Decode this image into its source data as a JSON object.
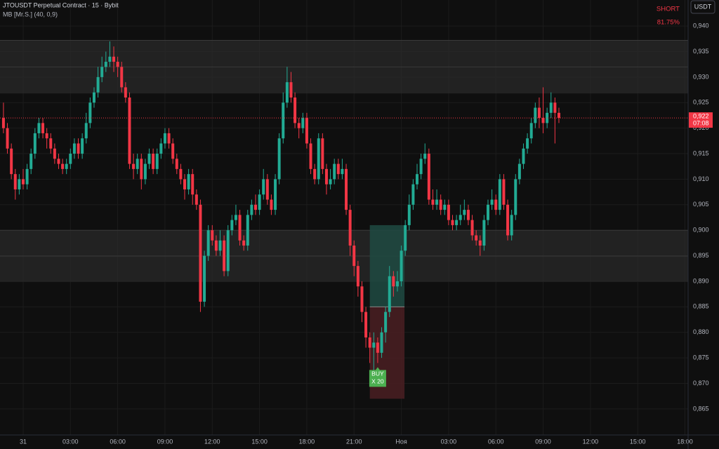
{
  "chart_data": {
    "type": "candlestick",
    "title": "JTOUSDT Perpetual Contract · 15 · Bybit",
    "subtitle": "MB [Mr.S.] (40, 0,9)",
    "signal": {
      "side": "SHORT",
      "value": "81.75%",
      "color": "#f23645"
    },
    "currency": "USDT",
    "buy_label": [
      "BUY",
      "X 20"
    ],
    "up_color": "#22ab94",
    "down_color": "#f23645",
    "grid": true,
    "xlim": [
      -1.47,
      42.2
    ],
    "ylim": [
      0.8599,
      0.9451
    ],
    "xticks": [
      {
        "value": 0,
        "label": "31"
      },
      {
        "value": 3,
        "label": "03:00"
      },
      {
        "value": 6,
        "label": "06:00"
      },
      {
        "value": 9,
        "label": "09:00"
      },
      {
        "value": 12,
        "label": "12:00"
      },
      {
        "value": 15,
        "label": "15:00"
      },
      {
        "value": 18,
        "label": "18:00"
      },
      {
        "value": 21,
        "label": "21:00"
      },
      {
        "value": 24,
        "label": "Ноя"
      },
      {
        "value": 27,
        "label": "03:00"
      },
      {
        "value": 30,
        "label": "06:00"
      },
      {
        "value": 33,
        "label": "09:00"
      },
      {
        "value": 36,
        "label": "12:00"
      },
      {
        "value": 39,
        "label": "15:00"
      },
      {
        "value": 42,
        "label": "18:00"
      }
    ],
    "yticks": [
      {
        "value": 0.94,
        "label": "0,940"
      },
      {
        "value": 0.935,
        "label": "0,935"
      },
      {
        "value": 0.93,
        "label": "0,930"
      },
      {
        "value": 0.925,
        "label": "0,925"
      },
      {
        "value": 0.92,
        "label": "0,920"
      },
      {
        "value": 0.915,
        "label": "0,915"
      },
      {
        "value": 0.91,
        "label": "0,910"
      },
      {
        "value": 0.905,
        "label": "0,905"
      },
      {
        "value": 0.9,
        "label": "0,900"
      },
      {
        "value": 0.895,
        "label": "0,895"
      },
      {
        "value": 0.89,
        "label": "0,890"
      },
      {
        "value": 0.885,
        "label": "0,885"
      },
      {
        "value": 0.88,
        "label": "0,880"
      },
      {
        "value": 0.875,
        "label": "0,875"
      },
      {
        "value": 0.87,
        "label": "0,870"
      },
      {
        "value": 0.865,
        "label": "0,865"
      }
    ],
    "last_price": {
      "value": 0.922,
      "label": "0,922",
      "countdown": "07:08"
    },
    "zones": [
      {
        "top": 0.9372,
        "bottom": 0.9268
      },
      {
        "top": 0.9,
        "bottom": 0.8899
      }
    ],
    "position": {
      "x_start": 22,
      "x_end": 24.2,
      "target": 0.901,
      "entry": 0.885,
      "stop": 0.867
    },
    "x": [
      -1.25,
      -1,
      -0.75,
      -0.5,
      -0.25,
      0,
      0.25,
      0.5,
      0.75,
      1,
      1.25,
      1.5,
      1.75,
      2,
      2.25,
      2.5,
      2.75,
      3,
      3.25,
      3.5,
      3.75,
      4,
      4.25,
      4.5,
      4.75,
      5,
      5.25,
      5.5,
      5.75,
      6,
      6.25,
      6.5,
      6.75,
      7,
      7.25,
      7.5,
      7.75,
      8,
      8.25,
      8.5,
      8.75,
      9,
      9.25,
      9.5,
      9.75,
      10,
      10.25,
      10.5,
      10.75,
      11,
      11.25,
      11.5,
      11.75,
      12,
      12.25,
      12.5,
      12.75,
      13,
      13.25,
      13.5,
      13.75,
      14,
      14.25,
      14.5,
      14.75,
      15,
      15.25,
      15.5,
      15.75,
      16,
      16.25,
      16.5,
      16.75,
      17,
      17.25,
      17.5,
      17.75,
      18,
      18.25,
      18.5,
      18.75,
      19,
      19.25,
      19.5,
      19.75,
      20,
      20.25,
      20.5,
      20.75,
      21,
      21.25,
      21.5,
      21.75,
      22,
      22.25,
      22.5,
      22.75,
      23,
      23.25,
      23.5,
      23.75,
      24,
      24.25,
      24.5,
      24.75,
      25,
      25.25,
      25.5,
      25.75,
      26,
      26.25,
      26.5,
      26.75,
      27,
      27.25,
      27.5,
      27.75,
      28,
      28.25,
      28.5,
      28.75,
      29,
      29.25,
      29.5,
      29.75,
      30,
      30.25,
      30.5,
      30.75,
      31,
      31.25,
      31.5,
      31.75,
      32,
      32.25,
      32.5,
      32.75,
      33,
      33.25,
      33.5,
      33.75,
      34
    ],
    "ohlc": [
      [
        0.922,
        0.925,
        0.919,
        0.92
      ],
      [
        0.92,
        0.921,
        0.915,
        0.916
      ],
      [
        0.916,
        0.917,
        0.91,
        0.911
      ],
      [
        0.911,
        0.912,
        0.906,
        0.908
      ],
      [
        0.908,
        0.911,
        0.907,
        0.91
      ],
      [
        0.91,
        0.912,
        0.908,
        0.909
      ],
      [
        0.909,
        0.913,
        0.908,
        0.912
      ],
      [
        0.912,
        0.916,
        0.911,
        0.915
      ],
      [
        0.915,
        0.92,
        0.914,
        0.919
      ],
      [
        0.919,
        0.922,
        0.918,
        0.921
      ],
      [
        0.921,
        0.922,
        0.918,
        0.919
      ],
      [
        0.919,
        0.92,
        0.916,
        0.918
      ],
      [
        0.918,
        0.919,
        0.915,
        0.916
      ],
      [
        0.916,
        0.917,
        0.913,
        0.914
      ],
      [
        0.914,
        0.915,
        0.912,
        0.913
      ],
      [
        0.913,
        0.914,
        0.911,
        0.912
      ],
      [
        0.912,
        0.914,
        0.911,
        0.913
      ],
      [
        0.913,
        0.916,
        0.912,
        0.915
      ],
      [
        0.915,
        0.918,
        0.914,
        0.917
      ],
      [
        0.917,
        0.918,
        0.914,
        0.915
      ],
      [
        0.915,
        0.919,
        0.914,
        0.918
      ],
      [
        0.918,
        0.923,
        0.917,
        0.921
      ],
      [
        0.921,
        0.926,
        0.92,
        0.925
      ],
      [
        0.925,
        0.928,
        0.924,
        0.927
      ],
      [
        0.927,
        0.932,
        0.926,
        0.93
      ],
      [
        0.93,
        0.934,
        0.929,
        0.932
      ],
      [
        0.932,
        0.935,
        0.931,
        0.933
      ],
      [
        0.933,
        0.937,
        0.932,
        0.934
      ],
      [
        0.934,
        0.936,
        0.931,
        0.933
      ],
      [
        0.933,
        0.934,
        0.93,
        0.932
      ],
      [
        0.932,
        0.933,
        0.927,
        0.928
      ],
      [
        0.928,
        0.929,
        0.925,
        0.926
      ],
      [
        0.926,
        0.927,
        0.912,
        0.913
      ],
      [
        0.913,
        0.915,
        0.91,
        0.912
      ],
      [
        0.912,
        0.915,
        0.911,
        0.914
      ],
      [
        0.914,
        0.915,
        0.908,
        0.91
      ],
      [
        0.91,
        0.914,
        0.909,
        0.913
      ],
      [
        0.913,
        0.916,
        0.912,
        0.915
      ],
      [
        0.915,
        0.916,
        0.911,
        0.912
      ],
      [
        0.912,
        0.916,
        0.911,
        0.915
      ],
      [
        0.915,
        0.918,
        0.914,
        0.917
      ],
      [
        0.917,
        0.92,
        0.916,
        0.919
      ],
      [
        0.919,
        0.92,
        0.916,
        0.917
      ],
      [
        0.917,
        0.918,
        0.913,
        0.914
      ],
      [
        0.914,
        0.915,
        0.911,
        0.912
      ],
      [
        0.912,
        0.913,
        0.909,
        0.91
      ],
      [
        0.91,
        0.911,
        0.906,
        0.908
      ],
      [
        0.908,
        0.912,
        0.907,
        0.911
      ],
      [
        0.911,
        0.912,
        0.905,
        0.907
      ],
      [
        0.907,
        0.908,
        0.904,
        0.905
      ],
      [
        0.905,
        0.906,
        0.884,
        0.886
      ],
      [
        0.886,
        0.896,
        0.885,
        0.895
      ],
      [
        0.895,
        0.901,
        0.894,
        0.9
      ],
      [
        0.9,
        0.901,
        0.897,
        0.898
      ],
      [
        0.898,
        0.899,
        0.895,
        0.896
      ],
      [
        0.896,
        0.9,
        0.895,
        0.898
      ],
      [
        0.898,
        0.899,
        0.891,
        0.892
      ],
      [
        0.892,
        0.901,
        0.891,
        0.9
      ],
      [
        0.9,
        0.903,
        0.899,
        0.902
      ],
      [
        0.902,
        0.905,
        0.901,
        0.903
      ],
      [
        0.903,
        0.904,
        0.897,
        0.898
      ],
      [
        0.898,
        0.899,
        0.896,
        0.897
      ],
      [
        0.897,
        0.904,
        0.896,
        0.903
      ],
      [
        0.903,
        0.906,
        0.902,
        0.905
      ],
      [
        0.905,
        0.907,
        0.903,
        0.904
      ],
      [
        0.904,
        0.908,
        0.903,
        0.907
      ],
      [
        0.907,
        0.912,
        0.906,
        0.91
      ],
      [
        0.91,
        0.911,
        0.905,
        0.906
      ],
      [
        0.906,
        0.907,
        0.903,
        0.904
      ],
      [
        0.904,
        0.911,
        0.903,
        0.91
      ],
      [
        0.91,
        0.919,
        0.909,
        0.918
      ],
      [
        0.918,
        0.927,
        0.917,
        0.925
      ],
      [
        0.925,
        0.932,
        0.924,
        0.929
      ],
      [
        0.929,
        0.931,
        0.925,
        0.926
      ],
      [
        0.926,
        0.927,
        0.92,
        0.921
      ],
      [
        0.921,
        0.922,
        0.918,
        0.92
      ],
      [
        0.92,
        0.923,
        0.919,
        0.922
      ],
      [
        0.922,
        0.923,
        0.916,
        0.917
      ],
      [
        0.917,
        0.918,
        0.911,
        0.912
      ],
      [
        0.912,
        0.913,
        0.909,
        0.91
      ],
      [
        0.91,
        0.919,
        0.909,
        0.918
      ],
      [
        0.918,
        0.919,
        0.911,
        0.912
      ],
      [
        0.912,
        0.913,
        0.907,
        0.909
      ],
      [
        0.909,
        0.912,
        0.908,
        0.91
      ],
      [
        0.91,
        0.914,
        0.909,
        0.913
      ],
      [
        0.913,
        0.914,
        0.91,
        0.911
      ],
      [
        0.911,
        0.914,
        0.91,
        0.912
      ],
      [
        0.912,
        0.913,
        0.903,
        0.904
      ],
      [
        0.904,
        0.905,
        0.895,
        0.897
      ],
      [
        0.897,
        0.898,
        0.891,
        0.893
      ],
      [
        0.893,
        0.894,
        0.887,
        0.889
      ],
      [
        0.889,
        0.89,
        0.882,
        0.884
      ],
      [
        0.884,
        0.885,
        0.877,
        0.879
      ],
      [
        0.879,
        0.88,
        0.874,
        0.877
      ],
      [
        0.877,
        0.88,
        0.8715,
        0.878
      ],
      [
        0.878,
        0.879,
        0.874,
        0.876
      ],
      [
        0.876,
        0.881,
        0.875,
        0.88
      ],
      [
        0.88,
        0.885,
        0.878,
        0.884
      ],
      [
        0.884,
        0.893,
        0.883,
        0.891
      ],
      [
        0.891,
        0.892,
        0.887,
        0.889
      ],
      [
        0.889,
        0.892,
        0.888,
        0.89
      ],
      [
        0.89,
        0.897,
        0.889,
        0.896
      ],
      [
        0.896,
        0.902,
        0.895,
        0.901
      ],
      [
        0.901,
        0.907,
        0.9,
        0.905
      ],
      [
        0.905,
        0.91,
        0.904,
        0.909
      ],
      [
        0.909,
        0.913,
        0.908,
        0.911
      ],
      [
        0.911,
        0.915,
        0.91,
        0.914
      ],
      [
        0.914,
        0.917,
        0.913,
        0.915
      ],
      [
        0.915,
        0.916,
        0.905,
        0.906
      ],
      [
        0.906,
        0.908,
        0.904,
        0.905
      ],
      [
        0.905,
        0.908,
        0.904,
        0.906
      ],
      [
        0.906,
        0.907,
        0.903,
        0.904
      ],
      [
        0.904,
        0.906,
        0.903,
        0.905
      ],
      [
        0.905,
        0.906,
        0.901,
        0.902
      ],
      [
        0.902,
        0.903,
        0.9,
        0.901
      ],
      [
        0.901,
        0.903,
        0.9,
        0.902
      ],
      [
        0.902,
        0.905,
        0.901,
        0.903
      ],
      [
        0.903,
        0.906,
        0.902,
        0.904
      ],
      [
        0.904,
        0.905,
        0.901,
        0.902
      ],
      [
        0.902,
        0.903,
        0.898,
        0.899
      ],
      [
        0.899,
        0.9,
        0.897,
        0.898
      ],
      [
        0.898,
        0.899,
        0.895,
        0.897
      ],
      [
        0.897,
        0.903,
        0.896,
        0.902
      ],
      [
        0.902,
        0.906,
        0.901,
        0.905
      ],
      [
        0.905,
        0.908,
        0.904,
        0.906
      ],
      [
        0.906,
        0.907,
        0.903,
        0.904
      ],
      [
        0.904,
        0.911,
        0.903,
        0.91
      ],
      [
        0.91,
        0.911,
        0.904,
        0.905
      ],
      [
        0.905,
        0.906,
        0.898,
        0.899
      ],
      [
        0.899,
        0.904,
        0.898,
        0.903
      ],
      [
        0.903,
        0.911,
        0.902,
        0.91
      ],
      [
        0.91,
        0.914,
        0.909,
        0.913
      ],
      [
        0.913,
        0.917,
        0.912,
        0.916
      ],
      [
        0.916,
        0.919,
        0.915,
        0.918
      ],
      [
        0.918,
        0.922,
        0.917,
        0.921
      ],
      [
        0.921,
        0.925,
        0.92,
        0.924
      ],
      [
        0.924,
        0.926,
        0.92,
        0.922
      ],
      [
        0.922,
        0.928,
        0.919,
        0.921
      ],
      [
        0.921,
        0.924,
        0.92,
        0.923
      ],
      [
        0.923,
        0.927,
        0.922,
        0.925
      ],
      [
        0.925,
        0.926,
        0.917,
        0.923
      ],
      [
        0.923,
        0.924,
        0.921,
        0.922
      ]
    ]
  }
}
